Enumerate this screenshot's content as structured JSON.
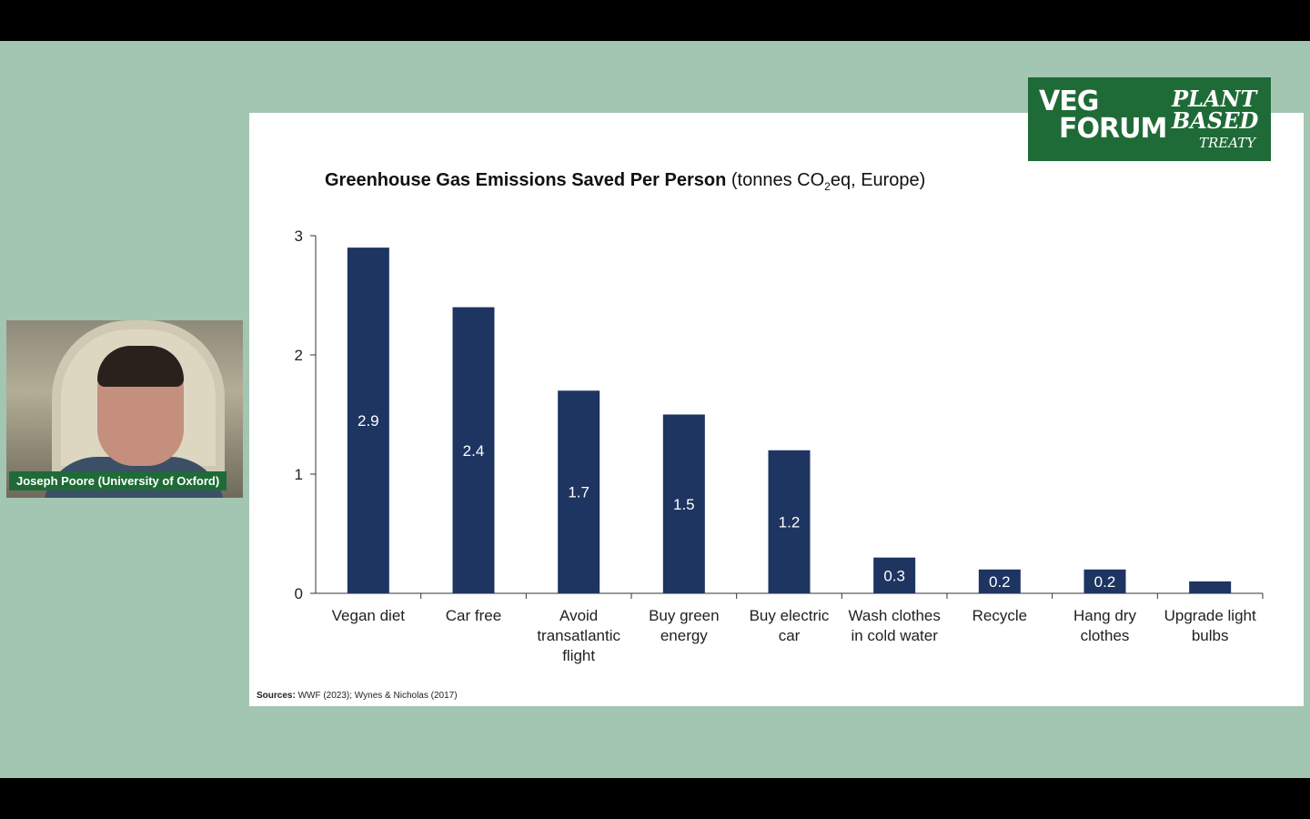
{
  "presenter": {
    "name": "Joseph Poore (University of Oxford)"
  },
  "logos": {
    "left_line1": "VEG",
    "left_line2": "FORUM",
    "right_line1": "PLANT",
    "right_line2": "BASED",
    "right_line3": "TREATY"
  },
  "colors": {
    "bar": "#1e3461",
    "stage_bg": "#a3c6b2",
    "logo_bg": "#1f6b37"
  },
  "chart_data": {
    "type": "bar",
    "title": "Greenhouse Gas Emissions Saved Per Person",
    "subtitle_pre": "(tonnes CO",
    "subtitle_sub": "2",
    "subtitle_post": "eq, Europe)",
    "categories": [
      [
        "Vegan diet"
      ],
      [
        "Car free"
      ],
      [
        "Avoid",
        "transatlantic",
        "flight"
      ],
      [
        "Buy green",
        "energy"
      ],
      [
        "Buy electric",
        "car"
      ],
      [
        "Wash clothes",
        "in cold water"
      ],
      [
        "Recycle"
      ],
      [
        "Hang dry",
        "clothes"
      ],
      [
        "Upgrade light",
        "bulbs"
      ]
    ],
    "values": [
      2.9,
      2.4,
      1.7,
      1.5,
      1.2,
      0.3,
      0.2,
      0.2,
      0.1
    ],
    "value_labels": [
      "2.9",
      "2.4",
      "1.7",
      "1.5",
      "1.2",
      "0.3",
      "0.2",
      "0.2",
      ""
    ],
    "yticks": [
      "0",
      "1",
      "2",
      "3"
    ],
    "ylim": [
      0,
      3
    ],
    "grid": false,
    "legend": "none"
  },
  "source": {
    "label": "Sources:",
    "text": " WWF (2023); Wynes & Nicholas (2017)"
  }
}
